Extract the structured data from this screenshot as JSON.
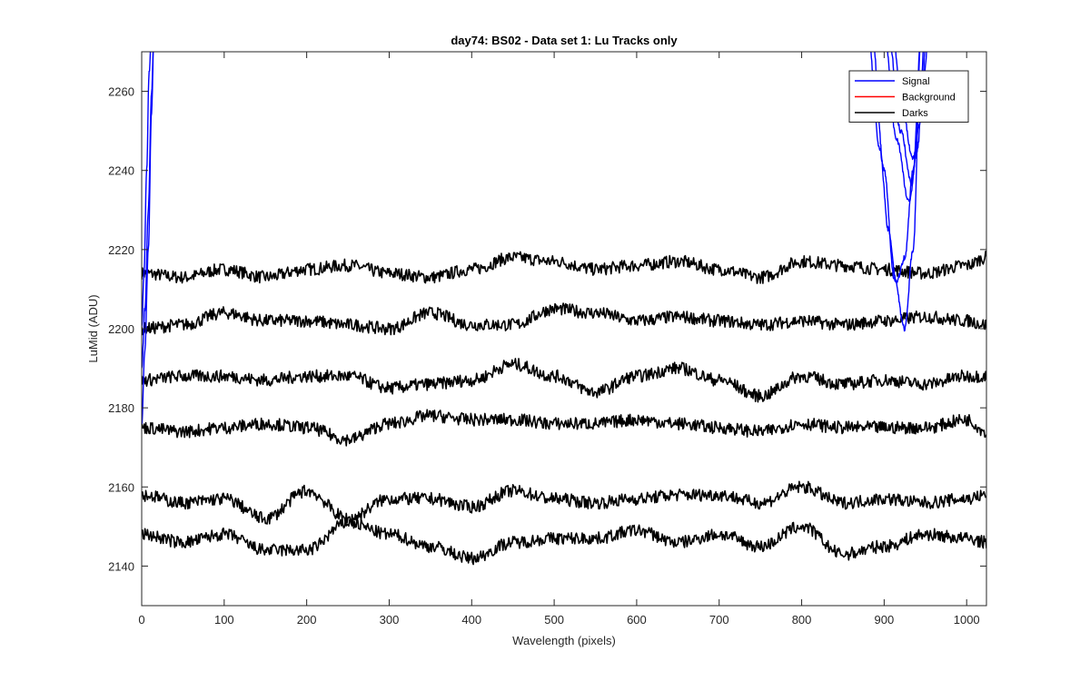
{
  "chart_data": {
    "type": "line",
    "title": "day74: BS02 - Data set 1: Lu Tracks only",
    "xlabel": "Wavelength (pixels)",
    "ylabel": "LuMid (ADU)",
    "xlim": [
      0,
      1024
    ],
    "ylim": [
      2130,
      2270
    ],
    "xticks": [
      0,
      100,
      200,
      300,
      400,
      500,
      600,
      700,
      800,
      900,
      1000
    ],
    "yticks": [
      2140,
      2160,
      2180,
      2200,
      2220,
      2240,
      2260
    ],
    "grid": false,
    "legend": {
      "placement": "top-right",
      "entries": [
        {
          "label": "Signal",
          "color": "#0000ff"
        },
        {
          "label": "Background",
          "color": "#ff0000"
        },
        {
          "label": "Darks",
          "color": "#000000"
        }
      ]
    },
    "series": [
      {
        "group": "Darks",
        "color": "#000000",
        "x": [
          0,
          50,
          100,
          150,
          200,
          250,
          300,
          350,
          400,
          450,
          500,
          550,
          600,
          650,
          700,
          750,
          800,
          850,
          900,
          950,
          1000,
          1024
        ],
        "y": [
          2214,
          2213,
          2215,
          2213,
          2215,
          2216,
          2214,
          2213,
          2215,
          2218,
          2217,
          2215,
          2216,
          2217,
          2215,
          2213,
          2217,
          2216,
          2215,
          2214,
          2216,
          2218
        ]
      },
      {
        "group": "Darks",
        "color": "#000000",
        "x": [
          0,
          50,
          100,
          150,
          200,
          250,
          300,
          350,
          400,
          450,
          500,
          550,
          600,
          650,
          700,
          750,
          800,
          850,
          900,
          950,
          1000,
          1024
        ],
        "y": [
          2200,
          2201,
          2204,
          2202,
          2202,
          2201,
          2200,
          2204,
          2201,
          2201,
          2205,
          2204,
          2202,
          2203,
          2202,
          2201,
          2202,
          2201,
          2202,
          2203,
          2202,
          2201
        ]
      },
      {
        "group": "Darks",
        "color": "#000000",
        "x": [
          0,
          50,
          100,
          150,
          200,
          250,
          300,
          350,
          400,
          450,
          500,
          550,
          600,
          650,
          700,
          750,
          800,
          850,
          900,
          950,
          1000,
          1024
        ],
        "y": [
          2187,
          2188,
          2188,
          2187,
          2188,
          2188,
          2185,
          2186,
          2187,
          2191,
          2188,
          2184,
          2188,
          2190,
          2187,
          2183,
          2188,
          2186,
          2187,
          2186,
          2188,
          2188
        ]
      },
      {
        "group": "Darks",
        "color": "#000000",
        "x": [
          0,
          50,
          100,
          150,
          200,
          250,
          300,
          350,
          400,
          450,
          500,
          550,
          600,
          650,
          700,
          750,
          800,
          850,
          900,
          950,
          1000,
          1024
        ],
        "y": [
          2175,
          2174,
          2175,
          2176,
          2175,
          2172,
          2176,
          2178,
          2177,
          2177,
          2176,
          2176,
          2177,
          2176,
          2175,
          2174,
          2176,
          2175,
          2175,
          2175,
          2177,
          2174
        ]
      },
      {
        "group": "Darks",
        "color": "#000000",
        "x": [
          0,
          50,
          100,
          150,
          200,
          250,
          300,
          350,
          400,
          450,
          500,
          550,
          600,
          650,
          700,
          750,
          800,
          850,
          900,
          950,
          1000,
          1024
        ],
        "y": [
          2158,
          2156,
          2157,
          2152,
          2159,
          2152,
          2157,
          2157,
          2155,
          2159,
          2157,
          2156,
          2157,
          2158,
          2158,
          2156,
          2160,
          2156,
          2157,
          2156,
          2157,
          2158
        ]
      },
      {
        "group": "Darks",
        "color": "#000000",
        "x": [
          0,
          50,
          100,
          150,
          200,
          250,
          300,
          350,
          400,
          450,
          500,
          550,
          600,
          650,
          700,
          750,
          800,
          850,
          900,
          950,
          1000,
          1024
        ],
        "y": [
          2148,
          2146,
          2148,
          2144,
          2144,
          2151,
          2148,
          2145,
          2142,
          2146,
          2147,
          2147,
          2149,
          2146,
          2148,
          2145,
          2150,
          2143,
          2145,
          2148,
          2147,
          2146
        ]
      },
      {
        "group": "Signal",
        "color": "#0000ff",
        "x": [
          0,
          4,
          8,
          12,
          15
        ],
        "y": [
          2176,
          2195,
          2220,
          2255,
          2275
        ]
      },
      {
        "group": "Signal",
        "color": "#0000ff",
        "x": [
          0,
          4,
          8,
          12,
          15
        ],
        "y": [
          2190,
          2205,
          2230,
          2260,
          2275
        ]
      },
      {
        "group": "Signal",
        "color": "#0000ff",
        "x": [
          0,
          3,
          6,
          9,
          12
        ],
        "y": [
          2200,
          2215,
          2240,
          2265,
          2275
        ]
      },
      {
        "group": "Signal",
        "color": "#0000ff",
        "x": [
          880,
          895,
          905,
          915,
          925,
          935,
          945
        ],
        "y": [
          2275,
          2245,
          2225,
          2212,
          2218,
          2240,
          2275
        ]
      },
      {
        "group": "Signal",
        "color": "#0000ff",
        "x": [
          885,
          900,
          912,
          925,
          935,
          945
        ],
        "y": [
          2275,
          2240,
          2213,
          2200,
          2220,
          2275
        ]
      },
      {
        "group": "Signal",
        "color": "#0000ff",
        "x": [
          900,
          915,
          930,
          940,
          950
        ],
        "y": [
          2275,
          2248,
          2232,
          2245,
          2275
        ]
      },
      {
        "group": "Signal",
        "color": "#0000ff",
        "x": [
          905,
          920,
          933,
          943,
          952
        ],
        "y": [
          2275,
          2250,
          2237,
          2252,
          2275
        ]
      },
      {
        "group": "Signal",
        "color": "#0000ff",
        "x": [
          910,
          922,
          935,
          945,
          955
        ],
        "y": [
          2275,
          2255,
          2243,
          2258,
          2275
        ]
      }
    ]
  }
}
